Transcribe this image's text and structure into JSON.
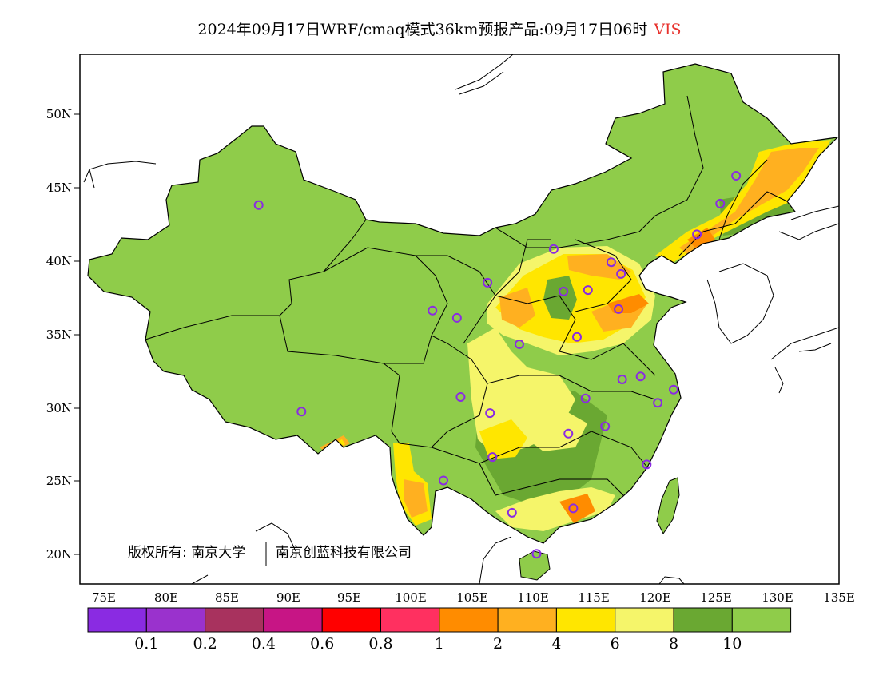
{
  "title": {
    "main": "2024年09月17日WRF/cmaq模式36km预报产品:09月17日06时",
    "variable": "VIS"
  },
  "axes": {
    "lat_labels": [
      "50N",
      "45N",
      "40N",
      "35N",
      "30N",
      "25N",
      "20N"
    ],
    "lon_labels": [
      "75E",
      "80E",
      "85E",
      "90E",
      "95E",
      "100E",
      "105E",
      "110E",
      "115E",
      "120E",
      "125E",
      "130E",
      "135E"
    ]
  },
  "copyright": {
    "part1": "版权所有: 南京大学",
    "part2": "南京创蓝科技有限公司"
  },
  "colorbar": {
    "colors": [
      "#8a2be2",
      "#9a32cd",
      "#a8325e",
      "#c71585",
      "#ff0000",
      "#ff3060",
      "#ff8c00",
      "#ffb020",
      "#ffe600",
      "#f5f56a",
      "#6aa832",
      "#8fcc4a"
    ],
    "labels": [
      "0.1",
      "0.2",
      "0.4",
      "0.6",
      "0.8",
      "1",
      "2",
      "4",
      "6",
      "8",
      "10"
    ]
  },
  "map_colors": {
    "land": "#8fcc4a",
    "dark_green": "#6aa832",
    "light_yellow": "#f5f56a",
    "yellow": "#ffe600",
    "orange": "#ffb020",
    "dark_orange": "#ff8c00",
    "station": "#8a2be2"
  },
  "stations": [
    {
      "lon": 87.6,
      "lat": 43.8
    },
    {
      "lon": 91.1,
      "lat": 29.7
    },
    {
      "lon": 101.8,
      "lat": 36.6
    },
    {
      "lon": 103.8,
      "lat": 36.1
    },
    {
      "lon": 106.3,
      "lat": 38.5
    },
    {
      "lon": 111.7,
      "lat": 40.8
    },
    {
      "lon": 112.5,
      "lat": 37.9
    },
    {
      "lon": 114.5,
      "lat": 38.0
    },
    {
      "lon": 116.4,
      "lat": 39.9
    },
    {
      "lon": 117.2,
      "lat": 39.1
    },
    {
      "lon": 117.0,
      "lat": 36.7
    },
    {
      "lon": 113.6,
      "lat": 34.8
    },
    {
      "lon": 108.9,
      "lat": 34.3
    },
    {
      "lon": 104.1,
      "lat": 30.7
    },
    {
      "lon": 106.5,
      "lat": 29.6
    },
    {
      "lon": 114.3,
      "lat": 30.6
    },
    {
      "lon": 117.3,
      "lat": 31.9
    },
    {
      "lon": 118.8,
      "lat": 32.1
    },
    {
      "lon": 120.2,
      "lat": 30.3
    },
    {
      "lon": 121.5,
      "lat": 31.2
    },
    {
      "lon": 112.9,
      "lat": 28.2
    },
    {
      "lon": 115.9,
      "lat": 28.7
    },
    {
      "lon": 119.3,
      "lat": 26.1
    },
    {
      "lon": 106.7,
      "lat": 26.6
    },
    {
      "lon": 102.7,
      "lat": 25.0
    },
    {
      "lon": 108.3,
      "lat": 22.8
    },
    {
      "lon": 113.3,
      "lat": 23.1
    },
    {
      "lon": 110.3,
      "lat": 20.0
    },
    {
      "lon": 123.4,
      "lat": 41.8
    },
    {
      "lon": 125.3,
      "lat": 43.9
    },
    {
      "lon": 126.6,
      "lat": 45.8
    }
  ]
}
